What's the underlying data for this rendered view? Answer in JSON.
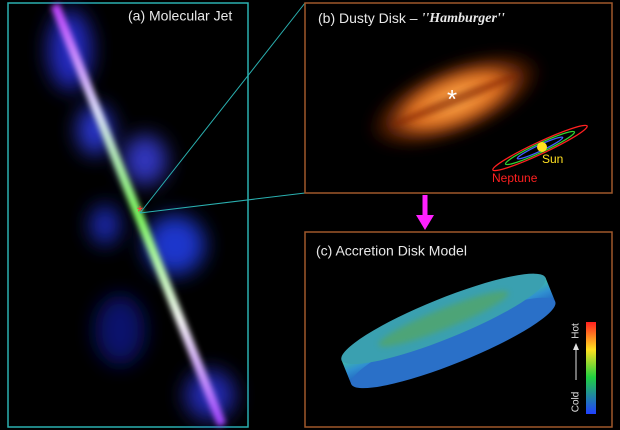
{
  "panels": {
    "jet": {
      "title": "(a) Molecular Jet"
    },
    "disk": {
      "title_prefix": "(b) Dusty Disk – ",
      "title_emphasis": "''Hamburger''",
      "sun": "Sun",
      "neptune": "Neptune"
    },
    "model": {
      "title": "(c) Accretion Disk Model",
      "hot": "Hot",
      "cold": "Cold"
    }
  }
}
